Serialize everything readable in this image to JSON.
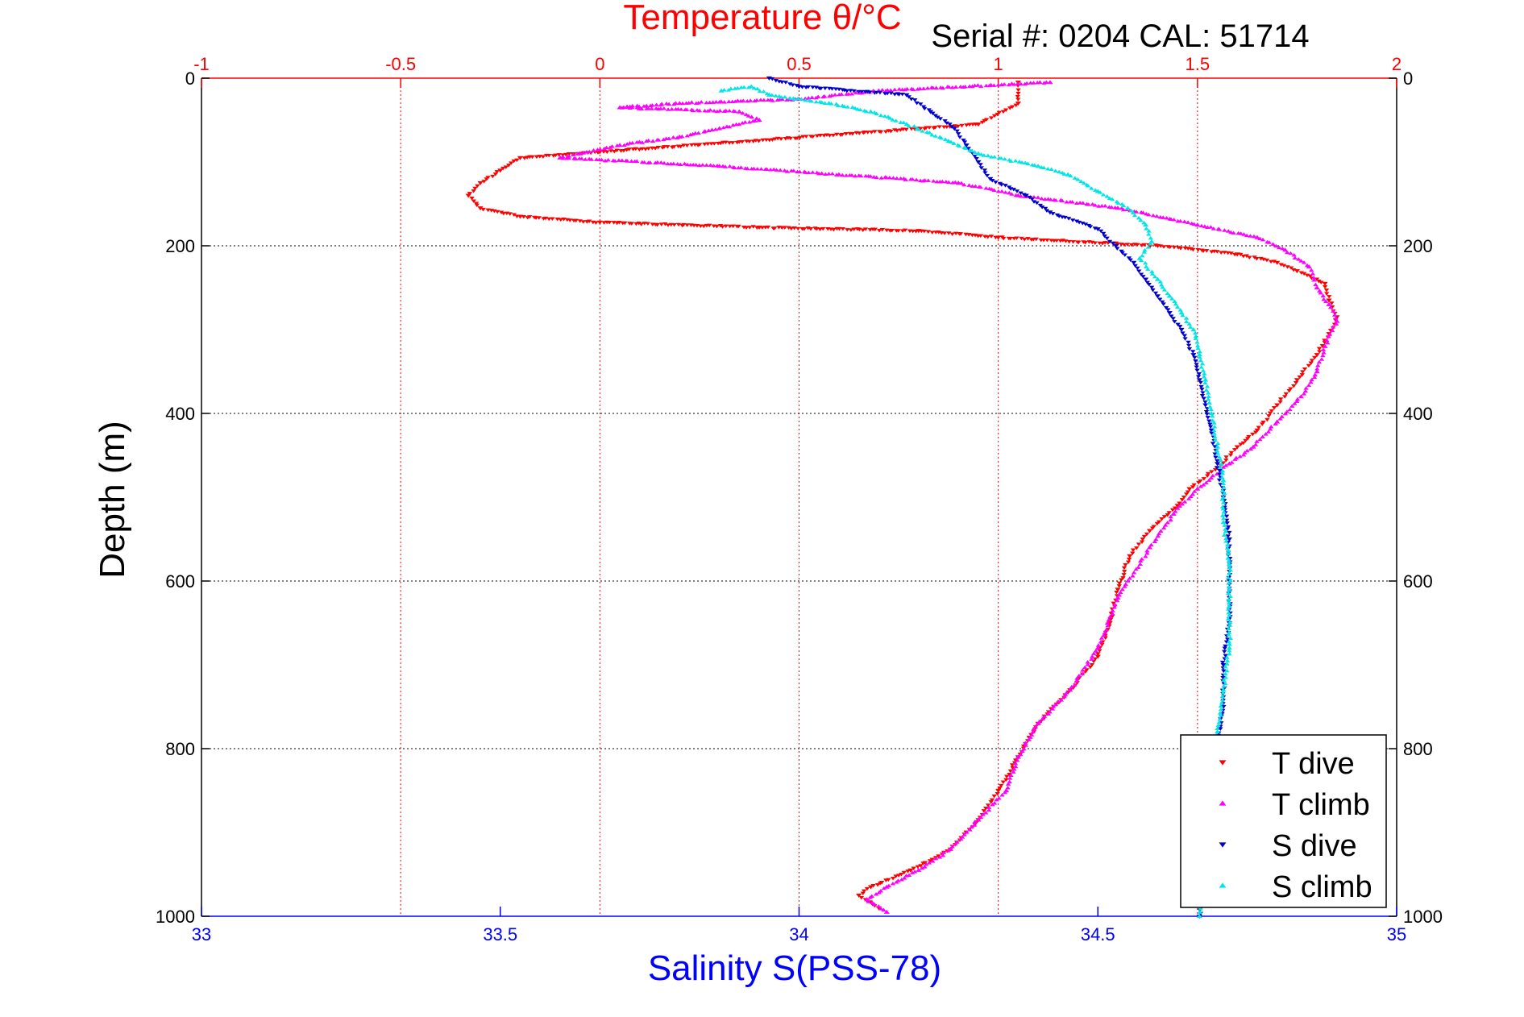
{
  "chart_data": {
    "type": "scatter",
    "title": "Temperature θ/°C",
    "header_text": "Serial #: 0204   CAL: 51714",
    "ylabel": "Depth (m)",
    "xlabel_bottom": "Salinity S(PSS-78)",
    "ylim": [
      1000,
      0
    ],
    "y_ticks": [
      0,
      200,
      400,
      600,
      800,
      1000
    ],
    "temperature_axis": {
      "range": [
        -1,
        2
      ],
      "ticks": [
        "-1",
        "-0.5",
        "0",
        "0.5",
        "1",
        "1.5",
        "2"
      ],
      "tick_values": [
        -1,
        -0.5,
        0,
        0.5,
        1,
        1.5,
        2
      ]
    },
    "salinity_axis": {
      "range": [
        33,
        35
      ],
      "ticks": [
        "33",
        "33.5",
        "34",
        "34.5",
        "35"
      ],
      "tick_values": [
        33,
        33.5,
        34,
        34.5,
        35
      ]
    },
    "grid": true,
    "legend_placement": "bottom-right",
    "colors": {
      "t_dive": "#ff0000",
      "t_climb": "#ff00ff",
      "s_dive": "#0000cc",
      "s_climb": "#00e5e5",
      "temperature_axis": "#ff0000",
      "salinity_axis": "#0000ff"
    },
    "series": [
      {
        "name": "T dive",
        "axis": "temperature",
        "marker": "down-triangle",
        "points": [
          [
            1.05,
            5
          ],
          [
            1.05,
            30
          ],
          [
            0.95,
            55
          ],
          [
            -0.2,
            95
          ],
          [
            -0.25,
            110
          ],
          [
            -0.3,
            125
          ],
          [
            -0.33,
            140
          ],
          [
            -0.3,
            155
          ],
          [
            -0.2,
            165
          ],
          [
            0.0,
            172
          ],
          [
            0.4,
            178
          ],
          [
            0.8,
            182
          ],
          [
            1.0,
            190
          ],
          [
            1.4,
            200
          ],
          [
            1.6,
            210
          ],
          [
            1.7,
            220
          ],
          [
            1.75,
            230
          ],
          [
            1.82,
            245
          ],
          [
            1.83,
            265
          ],
          [
            1.85,
            285
          ],
          [
            1.83,
            305
          ],
          [
            1.8,
            330
          ],
          [
            1.75,
            360
          ],
          [
            1.7,
            390
          ],
          [
            1.65,
            420
          ],
          [
            1.6,
            440
          ],
          [
            1.55,
            465
          ],
          [
            1.48,
            490
          ],
          [
            1.45,
            510
          ],
          [
            1.38,
            540
          ],
          [
            1.33,
            570
          ],
          [
            1.3,
            610
          ],
          [
            1.28,
            650
          ],
          [
            1.25,
            690
          ],
          [
            1.18,
            730
          ],
          [
            1.1,
            770
          ],
          [
            1.05,
            810
          ],
          [
            1.0,
            850
          ],
          [
            0.95,
            885
          ],
          [
            0.88,
            920
          ],
          [
            0.78,
            945
          ],
          [
            0.68,
            965
          ],
          [
            0.65,
            975
          ],
          [
            0.7,
            990
          ]
        ]
      },
      {
        "name": "T climb",
        "axis": "temperature",
        "marker": "up-triangle",
        "points": [
          [
            1.13,
            5
          ],
          [
            0.7,
            15
          ],
          [
            0.5,
            25
          ],
          [
            0.2,
            30
          ],
          [
            0.05,
            35
          ],
          [
            0.35,
            40
          ],
          [
            0.4,
            50
          ],
          [
            0.3,
            60
          ],
          [
            0.2,
            70
          ],
          [
            0.05,
            80
          ],
          [
            -0.05,
            90
          ],
          [
            -0.1,
            95
          ],
          [
            0.3,
            105
          ],
          [
            0.6,
            115
          ],
          [
            0.9,
            125
          ],
          [
            1.05,
            140
          ],
          [
            1.3,
            155
          ],
          [
            1.5,
            175
          ],
          [
            1.65,
            190
          ],
          [
            1.72,
            205
          ],
          [
            1.78,
            225
          ],
          [
            1.8,
            250
          ],
          [
            1.83,
            270
          ],
          [
            1.85,
            290
          ],
          [
            1.82,
            320
          ],
          [
            1.8,
            350
          ],
          [
            1.76,
            380
          ],
          [
            1.7,
            410
          ],
          [
            1.64,
            440
          ],
          [
            1.58,
            460
          ],
          [
            1.5,
            490
          ],
          [
            1.44,
            520
          ],
          [
            1.38,
            560
          ],
          [
            1.3,
            620
          ],
          [
            1.25,
            680
          ],
          [
            1.18,
            730
          ],
          [
            1.1,
            770
          ],
          [
            1.05,
            810
          ],
          [
            1.02,
            850
          ],
          [
            0.95,
            885
          ],
          [
            0.88,
            920
          ],
          [
            0.8,
            945
          ],
          [
            0.72,
            965
          ],
          [
            0.67,
            980
          ],
          [
            0.72,
            995
          ]
        ]
      },
      {
        "name": "S dive",
        "axis": "salinity",
        "marker": "down-triangle",
        "points": [
          [
            33.95,
            0
          ],
          [
            34.0,
            10
          ],
          [
            34.18,
            20
          ],
          [
            34.22,
            40
          ],
          [
            34.26,
            60
          ],
          [
            34.28,
            80
          ],
          [
            34.3,
            100
          ],
          [
            34.32,
            120
          ],
          [
            34.38,
            140
          ],
          [
            34.42,
            160
          ],
          [
            34.5,
            180
          ],
          [
            34.53,
            200
          ],
          [
            34.56,
            220
          ],
          [
            34.58,
            240
          ],
          [
            34.6,
            260
          ],
          [
            34.62,
            280
          ],
          [
            34.64,
            300
          ],
          [
            34.66,
            330
          ],
          [
            34.67,
            360
          ],
          [
            34.68,
            390
          ],
          [
            34.69,
            420
          ],
          [
            34.7,
            460
          ],
          [
            34.71,
            500
          ],
          [
            34.72,
            550
          ],
          [
            34.72,
            600
          ],
          [
            34.72,
            650
          ],
          [
            34.71,
            700
          ],
          [
            34.71,
            750
          ],
          [
            34.7,
            800
          ],
          [
            34.69,
            850
          ],
          [
            34.69,
            900
          ],
          [
            34.68,
            950
          ],
          [
            34.67,
            1000
          ]
        ]
      },
      {
        "name": "S climb",
        "axis": "salinity",
        "marker": "up-triangle",
        "points": [
          [
            33.87,
            15
          ],
          [
            33.92,
            10
          ],
          [
            33.95,
            20
          ],
          [
            34.05,
            30
          ],
          [
            34.12,
            40
          ],
          [
            34.18,
            55
          ],
          [
            34.25,
            75
          ],
          [
            34.3,
            90
          ],
          [
            34.4,
            105
          ],
          [
            34.45,
            115
          ],
          [
            34.5,
            135
          ],
          [
            34.55,
            155
          ],
          [
            34.58,
            175
          ],
          [
            34.59,
            195
          ],
          [
            34.57,
            215
          ],
          [
            34.6,
            240
          ],
          [
            34.62,
            260
          ],
          [
            34.64,
            280
          ],
          [
            34.66,
            300
          ],
          [
            34.67,
            330
          ],
          [
            34.68,
            360
          ],
          [
            34.69,
            400
          ],
          [
            34.7,
            440
          ],
          [
            34.71,
            480
          ],
          [
            34.71,
            530
          ],
          [
            34.72,
            580
          ],
          [
            34.72,
            630
          ],
          [
            34.72,
            680
          ],
          [
            34.71,
            730
          ],
          [
            34.7,
            780
          ],
          [
            34.69,
            830
          ],
          [
            34.69,
            880
          ],
          [
            34.68,
            930
          ],
          [
            34.67,
            970
          ],
          [
            34.67,
            1000
          ]
        ]
      }
    ]
  }
}
